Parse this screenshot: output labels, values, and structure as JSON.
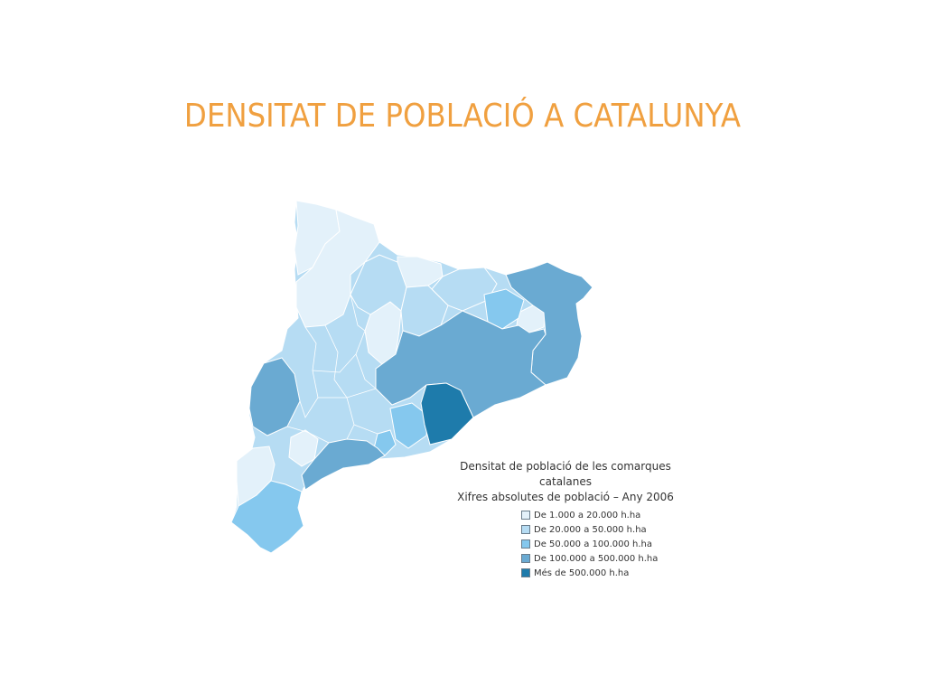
{
  "title": "DENSITAT DE POBLACIÓ A CATALUNYA",
  "legend": {
    "title_line1": "Densitat de població de les comarques catalanes",
    "title_line2": "Xifres absolutes de població – Any 2006",
    "items": [
      {
        "label": "De 1.000 a 20.000 h.ha",
        "color": "#e3f1fa"
      },
      {
        "label": "De 20.000 a 50.000 h.ha",
        "color": "#b6dcf3"
      },
      {
        "label": "De 50.000 a 100.000 h.ha",
        "color": "#85c8ee"
      },
      {
        "label": "De 100.000 a 500.000 h.ha",
        "color": "#6aaad2"
      },
      {
        "label": "Més de 500.000 h.ha",
        "color": "#1e7bab"
      }
    ]
  }
}
